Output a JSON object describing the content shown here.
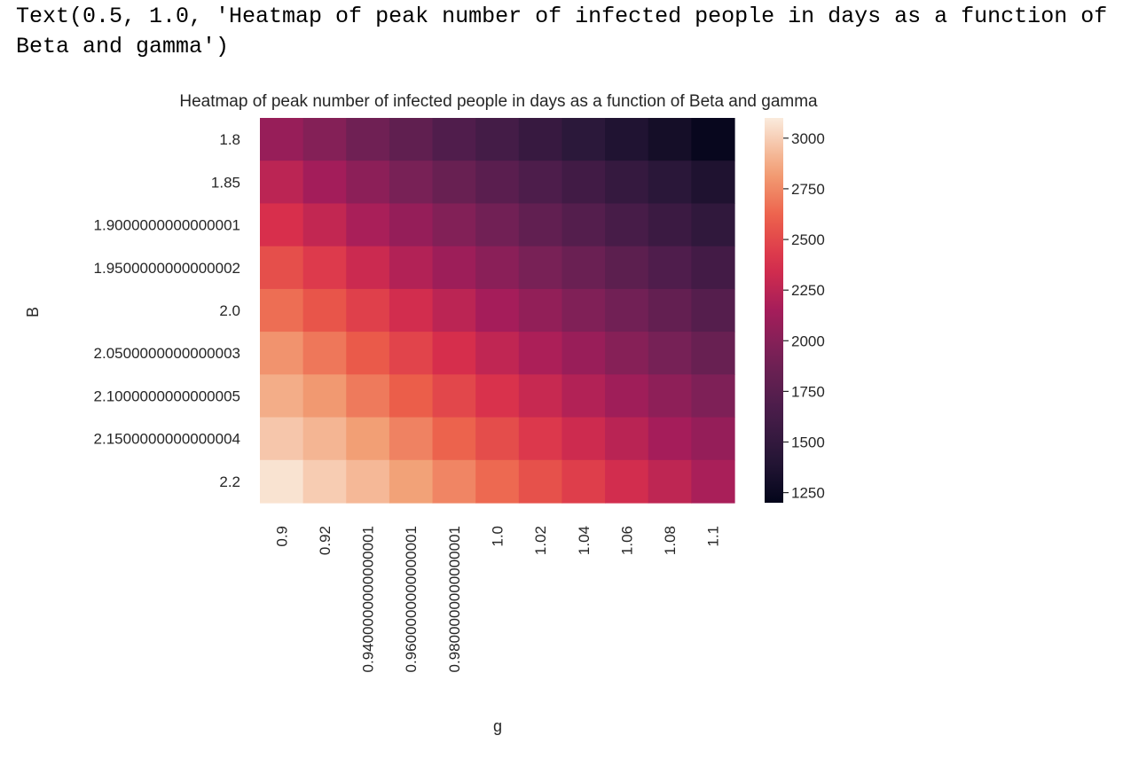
{
  "output_text": "Text(0.5, 1.0, 'Heatmap of peak number of infected people in days as a function of Beta and gamma')",
  "chart_data": {
    "type": "heatmap",
    "title": "Heatmap of peak number of infected people in days as a function of Beta and gamma",
    "xlabel": "g",
    "ylabel": "B",
    "x_categories": [
      "0.9",
      "0.92",
      "0.9400000000000001",
      "0.9600000000000001",
      "0.9800000000000001",
      "1.0",
      "1.02",
      "1.04",
      "1.06",
      "1.08",
      "1.1"
    ],
    "y_categories": [
      "1.8",
      "1.85",
      "1.9000000000000001",
      "1.9500000000000002",
      "2.0",
      "2.0500000000000003",
      "2.1000000000000005",
      "2.1500000000000004",
      "2.2"
    ],
    "values": [
      [
        2080,
        1990,
        1880,
        1790,
        1700,
        1620,
        1530,
        1450,
        1380,
        1310,
        1230
      ],
      [
        2250,
        2140,
        2030,
        1930,
        1840,
        1760,
        1680,
        1600,
        1520,
        1440,
        1370
      ],
      [
        2380,
        2280,
        2170,
        2070,
        1980,
        1890,
        1800,
        1720,
        1640,
        1560,
        1480
      ],
      [
        2530,
        2430,
        2320,
        2210,
        2110,
        2020,
        1930,
        1850,
        1770,
        1690,
        1610
      ],
      [
        2660,
        2560,
        2460,
        2350,
        2250,
        2150,
        2060,
        1970,
        1890,
        1810,
        1730
      ],
      [
        2790,
        2690,
        2580,
        2480,
        2370,
        2270,
        2180,
        2090,
        2000,
        1920,
        1840
      ],
      [
        2880,
        2810,
        2700,
        2600,
        2490,
        2390,
        2300,
        2210,
        2120,
        2040,
        1960
      ],
      [
        2970,
        2910,
        2830,
        2730,
        2620,
        2520,
        2420,
        2330,
        2240,
        2150,
        2070
      ],
      [
        3070,
        2990,
        2920,
        2840,
        2740,
        2640,
        2540,
        2450,
        2350,
        2260,
        2170
      ]
    ],
    "colorbar": {
      "vmin": 1200,
      "vmax": 3100,
      "ticks": [
        1250,
        1500,
        1750,
        2000,
        2250,
        2500,
        2750,
        3000
      ]
    },
    "colormap": "rocket"
  }
}
